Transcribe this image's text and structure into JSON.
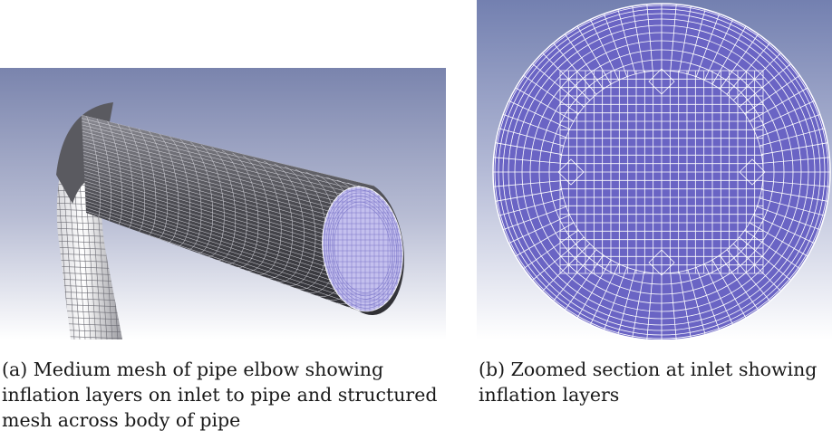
{
  "figure": {
    "panels": [
      {
        "id": "a",
        "caption": "(a) Medium mesh of pipe elbow showing inflation layers on inlet to pipe and structured mesh across body of pipe"
      },
      {
        "id": "b",
        "caption": "(b) Zoomed section at inlet showing inflation layers"
      }
    ],
    "colors": {
      "background_top": "#7a84ad",
      "background_bottom": "#ffffff",
      "mesh_face": "#6a64c4",
      "mesh_face_light": "#b9b4e8",
      "pipe_body": "#4d4d52",
      "grid_lines": "#ffffff"
    }
  }
}
